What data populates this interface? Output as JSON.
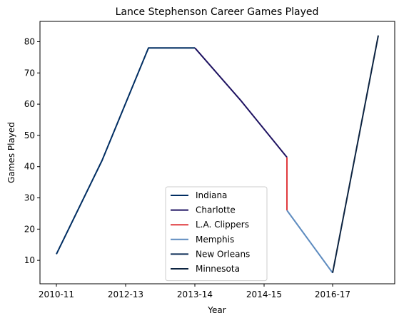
{
  "chart_data": {
    "type": "line",
    "title": "Lance Stephenson Career Games Played",
    "xlabel": "Year",
    "ylabel": "Games Played",
    "x_ticks": [
      "2010-11",
      "2012-13",
      "2013-14",
      "2014-15",
      "2016-17"
    ],
    "y_ticks": [
      "10",
      "20",
      "30",
      "40",
      "50",
      "60",
      "70",
      "80"
    ],
    "ylim": [
      2.5,
      86.5
    ],
    "legend_position": "bottom-center",
    "series": [
      {
        "name": "Indiana",
        "color": "#002D62",
        "points": [
          [
            0,
            12
          ],
          [
            1,
            42
          ],
          [
            2,
            78
          ],
          [
            3,
            78
          ]
        ]
      },
      {
        "name": "Charlotte",
        "color": "#1D1160",
        "points": [
          [
            3,
            78
          ],
          [
            4,
            61
          ],
          [
            5,
            43
          ]
        ]
      },
      {
        "name": "L.A. Clippers",
        "color": "#E03A3E",
        "points": [
          [
            5,
            43
          ],
          [
            5,
            26
          ]
        ]
      },
      {
        "name": "Memphis",
        "color": "#5D8BBF",
        "points": [
          [
            5,
            26
          ],
          [
            6,
            6
          ]
        ]
      },
      {
        "name": "New Orleans",
        "color": "#0C2C56",
        "points": [
          [
            6,
            6
          ]
        ]
      },
      {
        "name": "Minnesota",
        "color": "#0C2340",
        "points": [
          [
            6,
            6
          ],
          [
            7,
            82
          ]
        ]
      }
    ]
  }
}
